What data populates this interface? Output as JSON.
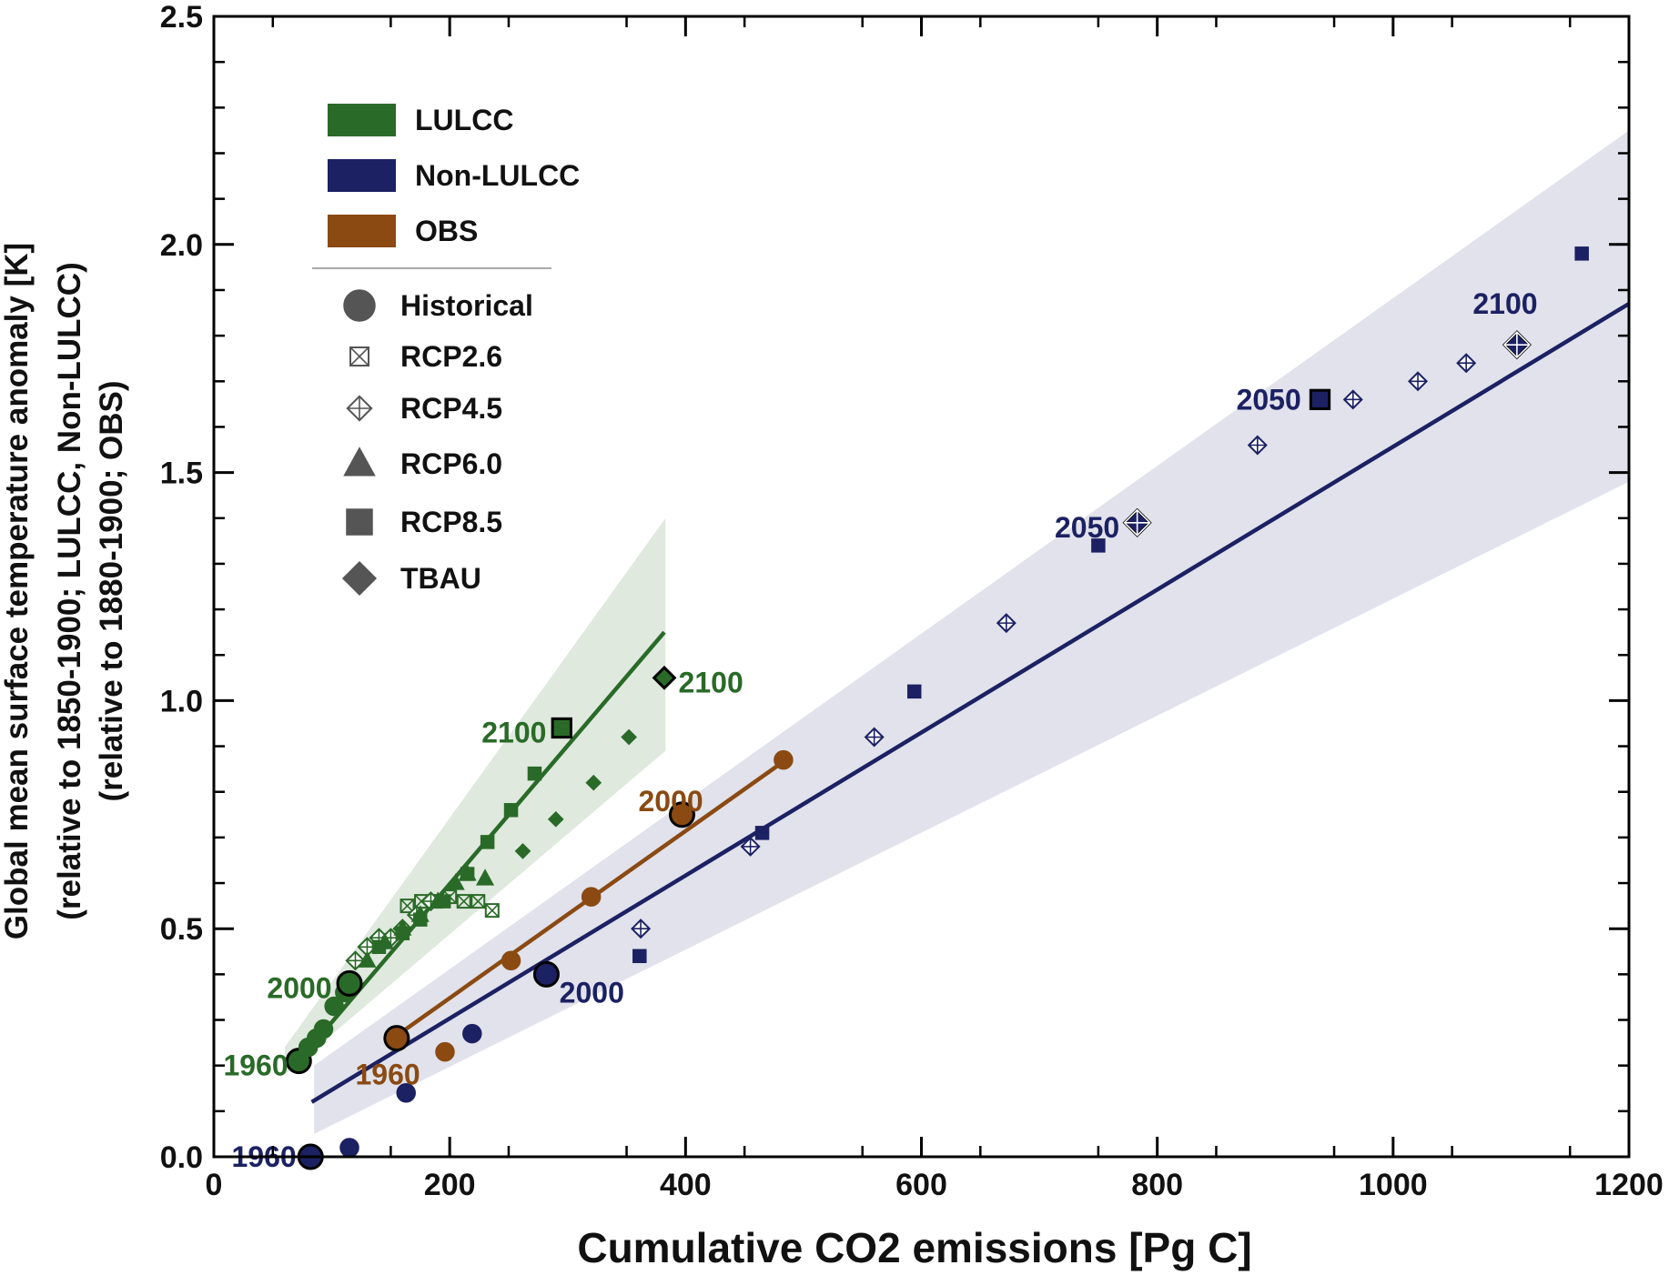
{
  "chart_data": {
    "type": "scatter",
    "xlabel": "Cumulative CO2 emissions [Pg C]",
    "ylabel_lines": [
      "Global mean surface temperature anomaly [K]",
      "(relative to 1850-1900; LULCC, Non-LULCC)",
      "(relative to 1880-1900; OBS)"
    ],
    "xlim": [
      0,
      1200
    ],
    "ylim": [
      0,
      2.5
    ],
    "x_ticks": [
      0,
      200,
      400,
      600,
      800,
      1000,
      1200
    ],
    "y_ticks": [
      0.0,
      0.5,
      1.0,
      1.5,
      2.0,
      2.5
    ],
    "x_tick_labels": [
      "0",
      "200",
      "400",
      "600",
      "800",
      "1000",
      "1200"
    ],
    "y_tick_labels": [
      "0.0",
      "0.5",
      "1.0",
      "1.5",
      "2.0",
      "2.5"
    ],
    "colors": {
      "LULCC": "#2a6a28",
      "Non-LULCC": "#1c2163",
      "OBS": "#8a4a12",
      "LULCC_band": "#dfe9de",
      "Non-LULCC_band": "#e1e2ec"
    },
    "legend": {
      "colors": [
        {
          "name": "LULCC",
          "color": "#2a6a28"
        },
        {
          "name": "Non-LULCC",
          "color": "#1c2163"
        },
        {
          "name": "OBS",
          "color": "#8a4a12"
        }
      ],
      "markers": [
        {
          "name": "Historical",
          "marker": "circle"
        },
        {
          "name": "RCP2.6",
          "marker": "boxed-x"
        },
        {
          "name": "RCP4.5",
          "marker": "diamond-cross"
        },
        {
          "name": "RCP6.0",
          "marker": "triangle"
        },
        {
          "name": "RCP8.5",
          "marker": "square"
        },
        {
          "name": "TBAU",
          "marker": "diamond"
        }
      ]
    },
    "fit_lines": [
      {
        "name": "LULCC",
        "color": "LULCC",
        "x": [
          72,
          382
        ],
        "y": [
          0.21,
          1.15
        ]
      },
      {
        "name": "Non-LULCC",
        "color": "Non-LULCC",
        "x": [
          83,
          1200
        ],
        "y": [
          0.12,
          1.87
        ]
      },
      {
        "name": "OBS",
        "color": "OBS",
        "x": [
          152,
          485
        ],
        "y": [
          0.26,
          0.87
        ]
      }
    ],
    "uncertainty_bands": [
      {
        "name": "LULCC",
        "color": "LULCC_band",
        "x": [
          60,
          383
        ],
        "upper": [
          0.24,
          1.4
        ],
        "lower": [
          0.18,
          0.89
        ]
      },
      {
        "name": "Non-LULCC",
        "color": "Non-LULCC_band",
        "x": [
          85,
          1200
        ],
        "upper": [
          0.2,
          2.25
        ],
        "lower": [
          0.05,
          1.48
        ]
      }
    ],
    "series": [
      {
        "name": "LULCC Historical",
        "group": "LULCC",
        "marker": "circle",
        "x": [
          72,
          80,
          87,
          93,
          102,
          111,
          115
        ],
        "y": [
          0.21,
          0.24,
          0.26,
          0.28,
          0.33,
          0.36,
          0.38
        ],
        "big": [
          0,
          6
        ]
      },
      {
        "name": "LULCC RCP2.6",
        "group": "LULCC",
        "marker": "boxed-x",
        "x": [
          164,
          176,
          188,
          200,
          212,
          224,
          236
        ],
        "y": [
          0.55,
          0.56,
          0.56,
          0.57,
          0.56,
          0.56,
          0.54
        ]
      },
      {
        "name": "LULCC RCP4.5",
        "group": "LULCC",
        "marker": "diamond-cross",
        "x": [
          120,
          130,
          140,
          150,
          160,
          172,
          184
        ],
        "y": [
          0.43,
          0.46,
          0.48,
          0.48,
          0.5,
          0.53,
          0.56
        ]
      },
      {
        "name": "LULCC RCP6.0",
        "group": "LULCC",
        "marker": "triangle",
        "x": [
          130,
          145,
          160,
          175,
          190,
          205,
          215,
          230
        ],
        "y": [
          0.43,
          0.47,
          0.5,
          0.53,
          0.56,
          0.6,
          0.62,
          0.61
        ]
      },
      {
        "name": "LULCC RCP8.5",
        "group": "LULCC",
        "marker": "square",
        "x": [
          140,
          160,
          175,
          195,
          215,
          232,
          252,
          272,
          295
        ],
        "y": [
          0.46,
          0.49,
          0.52,
          0.56,
          0.62,
          0.69,
          0.76,
          0.84,
          0.94
        ],
        "big": [
          8
        ]
      },
      {
        "name": "LULCC TBAU",
        "group": "LULCC",
        "marker": "diamond",
        "x": [
          262,
          290,
          322,
          352,
          382
        ],
        "y": [
          0.67,
          0.74,
          0.82,
          0.92,
          1.05
        ],
        "big": [
          4
        ]
      },
      {
        "name": "Non-LULCC Historical",
        "group": "Non-LULCC",
        "marker": "circle",
        "x": [
          82,
          115,
          163,
          219,
          282
        ],
        "y": [
          0.0,
          0.02,
          0.14,
          0.27,
          0.4
        ],
        "big": [
          0,
          4
        ]
      },
      {
        "name": "Non-LULCC RCP4.5",
        "group": "Non-LULCC",
        "marker": "diamond-cross",
        "x": [
          362,
          455,
          560,
          672,
          783,
          885,
          966,
          1021,
          1062,
          1105
        ],
        "y": [
          0.5,
          0.68,
          0.92,
          1.17,
          1.39,
          1.56,
          1.66,
          1.7,
          1.74,
          1.78
        ],
        "big": [
          4,
          9
        ]
      },
      {
        "name": "Non-LULCC RCP8.5",
        "group": "Non-LULCC",
        "marker": "square",
        "x": [
          361,
          465,
          594,
          750,
          938,
          1160
        ],
        "y": [
          0.44,
          0.71,
          1.02,
          1.34,
          1.66,
          1.98
        ],
        "big": [
          4
        ]
      },
      {
        "name": "OBS",
        "group": "OBS",
        "marker": "circle",
        "x": [
          155,
          196,
          252,
          320,
          397,
          483
        ],
        "y": [
          0.26,
          0.23,
          0.43,
          0.57,
          0.75,
          0.87
        ],
        "big": [
          0,
          4
        ]
      }
    ],
    "annotations": [
      {
        "text": "1960",
        "group": "LULCC",
        "x": 63,
        "y": 0.2,
        "anchor": "end"
      },
      {
        "text": "2000",
        "group": "LULCC",
        "x": 100,
        "y": 0.37,
        "anchor": "end"
      },
      {
        "text": "2100",
        "group": "LULCC",
        "x": 282,
        "y": 0.93,
        "anchor": "end"
      },
      {
        "text": "2100",
        "group": "LULCC",
        "x": 394,
        "y": 1.04,
        "anchor": "start"
      },
      {
        "text": "1960",
        "group": "Non-LULCC",
        "x": 70,
        "y": 0.0,
        "anchor": "end"
      },
      {
        "text": "2000",
        "group": "Non-LULCC",
        "x": 293,
        "y": 0.36,
        "anchor": "start"
      },
      {
        "text": "2050",
        "group": "Non-LULCC",
        "x": 768,
        "y": 1.38,
        "anchor": "end"
      },
      {
        "text": "2050",
        "group": "Non-LULCC",
        "x": 922,
        "y": 1.66,
        "anchor": "end"
      },
      {
        "text": "2100",
        "group": "Non-LULCC",
        "x": 1095,
        "y": 1.87,
        "anchor": "middle"
      },
      {
        "text": "1960",
        "group": "OBS",
        "x": 120,
        "y": 0.18,
        "anchor": "start"
      },
      {
        "text": "2000",
        "group": "OBS",
        "x": 360,
        "y": 0.78,
        "anchor": "start"
      }
    ]
  }
}
